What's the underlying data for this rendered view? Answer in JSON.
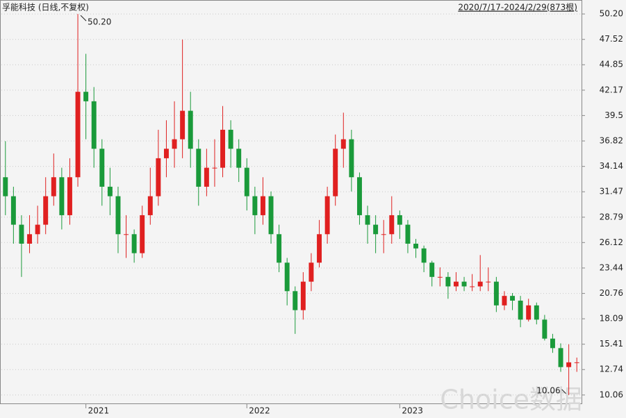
{
  "chart_data": {
    "type": "candlestick",
    "title": "孚能科技 (日线,不复权)",
    "subtitle": "2020/7/17-2024/2/29(873根)",
    "watermark": "Choice数据",
    "up_color": "#e02020",
    "down_color": "#1a9a3a",
    "grid": true,
    "categories": [
      null,
      null,
      null,
      null,
      null,
      null,
      null,
      null,
      null,
      null,
      "2021",
      null,
      null,
      null,
      null,
      null,
      null,
      null,
      null,
      null,
      null,
      null,
      null,
      null,
      null,
      null,
      null,
      null,
      null,
      null,
      "2022",
      null,
      null,
      null,
      null,
      null,
      null,
      null,
      null,
      null,
      null,
      null,
      null,
      null,
      null,
      null,
      null,
      null,
      null,
      "2023",
      null,
      null,
      null,
      null,
      null,
      null,
      null,
      null,
      null,
      null,
      null,
      null,
      null,
      null,
      null,
      null,
      null,
      null,
      null,
      null,
      null,
      null
    ],
    "open": [
      33,
      31,
      28,
      26,
      27,
      28,
      31,
      33,
      29,
      33,
      42,
      41,
      36,
      32,
      31,
      27,
      27,
      25,
      29,
      31,
      35,
      36,
      37,
      40,
      36,
      32,
      34,
      34,
      38,
      36,
      34,
      31,
      29,
      31,
      27,
      24,
      21,
      19,
      22,
      24,
      27,
      31,
      36,
      37,
      33,
      29,
      28,
      27,
      27,
      29,
      28,
      26,
      25.5,
      24,
      22.5,
      22.5,
      21.5,
      22,
      21.5,
      21.5,
      22,
      22,
      19.5,
      20.5,
      20,
      18,
      19.5,
      18,
      16,
      15,
      13,
      13.5
    ],
    "high": [
      36.8,
      32,
      29,
      29,
      30,
      33,
      35.5,
      34,
      35,
      50.2,
      46,
      42.5,
      37,
      34,
      32,
      29,
      27.5,
      30,
      34,
      38,
      39,
      41,
      47.5,
      42,
      37,
      36,
      37,
      40.5,
      39,
      37,
      35,
      32,
      33,
      31.5,
      28,
      24.5,
      21.5,
      23,
      25,
      28.5,
      32,
      37.5,
      39.8,
      38,
      33.5,
      30,
      29,
      28.5,
      31,
      29.5,
      28.5,
      26.5,
      25.8,
      24.2,
      23.5,
      23,
      23,
      22.5,
      22.8,
      24.8,
      23.5,
      22.5,
      21,
      20.8,
      20.5,
      20.2,
      19.8,
      18.5,
      16.5,
      15.5,
      15.4,
      14
    ],
    "low": [
      29,
      26,
      22.5,
      25,
      26,
      27,
      30,
      27.5,
      28,
      32,
      37,
      34,
      30,
      29,
      25,
      24.5,
      24,
      24.5,
      28,
      30,
      33,
      34,
      35,
      34,
      30,
      31,
      32,
      33,
      34,
      32.5,
      29.5,
      27,
      28,
      26,
      23,
      19.5,
      16.5,
      18,
      21,
      23.5,
      26,
      30,
      34,
      31.5,
      28,
      26,
      25,
      25,
      26,
      26.5,
      25,
      24.5,
      23,
      21.5,
      21.5,
      20.2,
      21,
      21,
      21,
      21,
      21,
      18.8,
      19,
      19,
      17.2,
      17.8,
      17.5,
      15.8,
      14.5,
      12.5,
      10.06,
      12.5
    ],
    "close": [
      31,
      28,
      26,
      27,
      28,
      31,
      33,
      29,
      33,
      42,
      41,
      36,
      32,
      31,
      27,
      27,
      25,
      29,
      31,
      35,
      36,
      37,
      40,
      36,
      32,
      34,
      34,
      38,
      36,
      34,
      31,
      29,
      31,
      27,
      24,
      21,
      19,
      22,
      24,
      27,
      31,
      36,
      37,
      33,
      29,
      28,
      27,
      27,
      29,
      28,
      26,
      25.5,
      24,
      22.5,
      22.5,
      21.5,
      22,
      21.5,
      21.5,
      22,
      22,
      19.5,
      20.5,
      20,
      18,
      19.5,
      18,
      16,
      15,
      13,
      13.5,
      13.5
    ],
    "annotations": [
      {
        "index": 9,
        "value": 50.2,
        "label": "50.20"
      },
      {
        "index": 70,
        "value": 10.06,
        "label": "10.06"
      }
    ],
    "ylim": [
      9.1,
      51.67
    ],
    "yticks": [
      10.06,
      12.74,
      15.41,
      18.09,
      20.76,
      23.44,
      26.12,
      28.79,
      31.47,
      34.14,
      36.82,
      39.5,
      42.17,
      44.85,
      47.52,
      {
        "value": 50.2,
        "label": "50.20"
      }
    ]
  }
}
